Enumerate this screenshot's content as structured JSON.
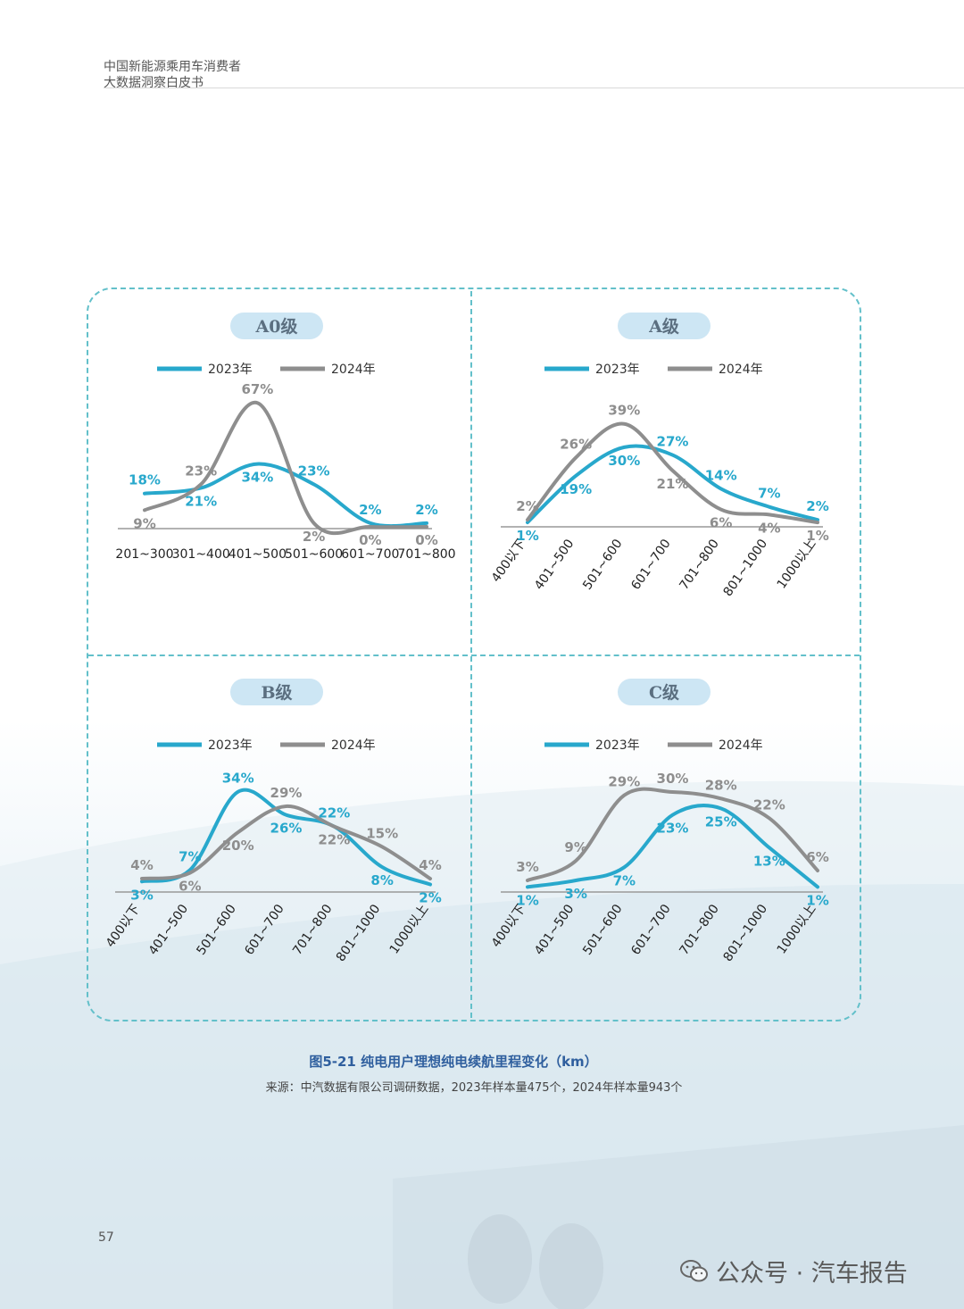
{
  "header": {
    "line1": "中国新能源乘用车消费者",
    "line2": "大数据洞察白皮书"
  },
  "caption": "图5-21 纯电用户理想纯电续航里程变化（km）",
  "source": "来源：中汽数据有限公司调研数据，2023年样本量475个，2024年样本量943个",
  "page_number": "57",
  "watermark": "公众号 · 汽车报告",
  "colors": {
    "y2023": "#28a8cc",
    "y2024": "#8e8e8e",
    "pill": "#cde6f4",
    "border": "#63c0ca"
  },
  "chart_data": [
    {
      "type": "line",
      "title": "A0级",
      "categories": [
        "201~300",
        "301~400",
        "401~500",
        "501~600",
        "601~700",
        "701~800"
      ],
      "series": [
        {
          "name": "2023年",
          "values": [
            18,
            21,
            34,
            23,
            2,
            2
          ]
        },
        {
          "name": "2024年",
          "values": [
            9,
            23,
            67,
            2,
            0,
            0
          ]
        }
      ],
      "legend": "top",
      "tick_rotation": 0
    },
    {
      "type": "line",
      "title": "A级",
      "categories": [
        "400以下",
        "401~500",
        "501~600",
        "601~700",
        "701~800",
        "801~1000",
        "1000以上"
      ],
      "series": [
        {
          "name": "2023年",
          "values": [
            1,
            19,
            30,
            27,
            14,
            7,
            2
          ]
        },
        {
          "name": "2024年",
          "values": [
            2,
            26,
            39,
            21,
            6,
            4,
            1
          ]
        }
      ],
      "legend": "top",
      "tick_rotation": -55
    },
    {
      "type": "line",
      "title": "B级",
      "categories": [
        "400以下",
        "401~500",
        "501~600",
        "601~700",
        "701~800",
        "801~1000",
        "1000以上"
      ],
      "series": [
        {
          "name": "2023年",
          "values": [
            3,
            7,
            34,
            26,
            22,
            8,
            2
          ]
        },
        {
          "name": "2024年",
          "values": [
            4,
            6,
            20,
            29,
            22,
            15,
            4
          ]
        }
      ],
      "legend": "top",
      "tick_rotation": -55
    },
    {
      "type": "line",
      "title": "C级",
      "categories": [
        "400以下",
        "401~500",
        "501~600",
        "601~700",
        "701~800",
        "801~1000",
        "1000以上"
      ],
      "series": [
        {
          "name": "2023年",
          "values": [
            1,
            3,
            7,
            23,
            25,
            13,
            1
          ]
        },
        {
          "name": "2024年",
          "values": [
            3,
            9,
            29,
            30,
            28,
            22,
            6
          ]
        }
      ],
      "legend": "top",
      "tick_rotation": -55
    }
  ]
}
